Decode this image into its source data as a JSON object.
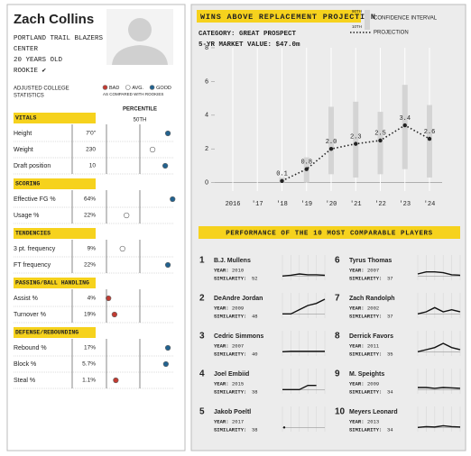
{
  "profile": {
    "name": "Zach Collins",
    "details": [
      "PORTLAND TRAIL BLAZERS",
      "CENTER",
      "20 YEARS OLD",
      "ROOKIE ✔"
    ],
    "stats_heading": [
      "ADJUSTED COLLEGE",
      "STATISTICS"
    ],
    "legend": [
      {
        "label": "BAD",
        "color": "#c23b32"
      },
      {
        "label": "AVG.",
        "color": "#ffffff"
      },
      {
        "label": "GOOD",
        "color": "#22628f"
      }
    ],
    "legend_note": "AS COMPARED WITH ROOKIES",
    "percentile_label": "PERCENTILE",
    "median_label": "50TH",
    "percentile_xlim": [
      0,
      100
    ],
    "sections": [
      {
        "name": "VITALS",
        "stats": [
          {
            "label": "Height",
            "value": "7'0\"",
            "percentile": 92,
            "color": "#22628f"
          },
          {
            "label": "Weight",
            "value": 230,
            "percentile": 69,
            "color": "#ffffff"
          },
          {
            "label": "Draft position",
            "value": 10,
            "percentile": 88,
            "color": "#22628f"
          }
        ]
      },
      {
        "name": "SCORING",
        "stats": [
          {
            "label": "Effective FG %",
            "value": "64%",
            "percentile": 99,
            "color": "#22628f"
          },
          {
            "label": "Usage %",
            "value": "22%",
            "percentile": 30,
            "color": "#ffffff"
          }
        ]
      },
      {
        "name": "TENDENCIES",
        "stats": [
          {
            "label": "3 pt. frequency",
            "value": "9%",
            "percentile": 24,
            "color": "#ffffff"
          },
          {
            "label": "FT frequency",
            "value": "22%",
            "percentile": 92,
            "color": "#22628f"
          }
        ]
      },
      {
        "name": "PASSING/BALL HANDLING",
        "stats": [
          {
            "label": "Assist %",
            "value": "4%",
            "percentile": 3,
            "color": "#c23b32"
          },
          {
            "label": "Turnover %",
            "value": "19%",
            "percentile": 12,
            "color": "#c23b32"
          }
        ]
      },
      {
        "name": "DEFENSE/REBOUNDING",
        "stats": [
          {
            "label": "Rebound %",
            "value": "17%",
            "percentile": 92,
            "color": "#22628f"
          },
          {
            "label": "Block %",
            "value": "5.7%",
            "percentile": 89,
            "color": "#22628f"
          },
          {
            "label": "Steal %",
            "value": "1.1%",
            "percentile": 14,
            "color": "#c23b32"
          }
        ]
      }
    ]
  },
  "chart_data": {
    "type": "line",
    "title": "WINS ABOVE REPLACEMENT PROJECTION",
    "subtitle": [
      "CATEGORY: GREAT PROSPECT",
      "5-YR MARKET VALUE: $47.0m"
    ],
    "legend": {
      "interval": "CONFIDENCE INTERVAL",
      "projection": "PROJECTION",
      "upper": "90TH",
      "lower": "10TH"
    },
    "categories": [
      "2016",
      "'17",
      "'18",
      "'19",
      "'20",
      "'21",
      "'22",
      "'23",
      "'24"
    ],
    "values": [
      null,
      null,
      0.1,
      0.8,
      2.0,
      2.3,
      2.5,
      3.4,
      2.6
    ],
    "value_labels": [
      null,
      null,
      "0.1",
      "0.8",
      "2.0",
      "2.3",
      "2.5",
      "3.4",
      "2.6"
    ],
    "ci": [
      null,
      null,
      [
        0,
        0.3
      ],
      [
        0,
        1.5
      ],
      [
        0.5,
        4.5
      ],
      [
        0.3,
        4.8
      ],
      [
        0.5,
        4.2
      ],
      [
        0.8,
        5.8
      ],
      [
        0.3,
        4.6
      ]
    ],
    "color": "#222222",
    "ci_color": "#d4d4d4",
    "ylim": [
      -0.5,
      8
    ],
    "yticks": [
      0,
      2,
      4,
      6,
      8
    ],
    "grid": true
  },
  "comparables": {
    "title": "PERFORMANCE OF THE 10 MOST COMPARABLE PLAYERS",
    "year_label": "YEAR:",
    "similarity_label": "SIMILARITY:",
    "spark_ylim": [
      -1,
      5
    ],
    "players": [
      {
        "rank": 1,
        "name": "B.J. Mullens",
        "year": 2010,
        "similarity": 52,
        "war": [
          0,
          0.2,
          0.5,
          0.3,
          0.3,
          0.2
        ]
      },
      {
        "rank": 2,
        "name": "DeAndre Jordan",
        "year": 2009,
        "similarity": 48,
        "war": [
          0,
          0,
          1,
          2,
          2.5,
          3.5
        ]
      },
      {
        "rank": 3,
        "name": "Cedric Simmons",
        "year": 2007,
        "similarity": 40,
        "war": [
          0,
          0.1,
          0.1,
          0.1,
          0.1,
          0.1
        ]
      },
      {
        "rank": 4,
        "name": "Joel Embiid",
        "year": 2015,
        "similarity": 38,
        "war": [
          0,
          0,
          0,
          1,
          1
        ]
      },
      {
        "rank": 5,
        "name": "Jakob Poeltl",
        "year": 2017,
        "similarity": 38,
        "war": [
          0
        ]
      },
      {
        "rank": 6,
        "name": "Tyrus Thomas",
        "year": 2007,
        "similarity": 37,
        "war": [
          0.5,
          1,
          1,
          0.8,
          0.3,
          0.2
        ]
      },
      {
        "rank": 7,
        "name": "Zach Randolph",
        "year": 2002,
        "similarity": 37,
        "war": [
          0,
          0.5,
          1.5,
          0.5,
          1,
          0.5
        ]
      },
      {
        "rank": 8,
        "name": "Derrick Favors",
        "year": 2011,
        "similarity": 35,
        "war": [
          0,
          0.5,
          1,
          2,
          1,
          0.5
        ]
      },
      {
        "rank": 9,
        "name": "M. Speights",
        "year": 2009,
        "similarity": 34,
        "war": [
          0.5,
          0.5,
          0.3,
          0.5,
          0.4,
          0.3
        ]
      },
      {
        "rank": 10,
        "name": "Meyers Leonard",
        "year": 2013,
        "similarity": 34,
        "war": [
          0,
          0.2,
          0.1,
          0.4,
          0.2,
          0.1
        ]
      }
    ]
  }
}
